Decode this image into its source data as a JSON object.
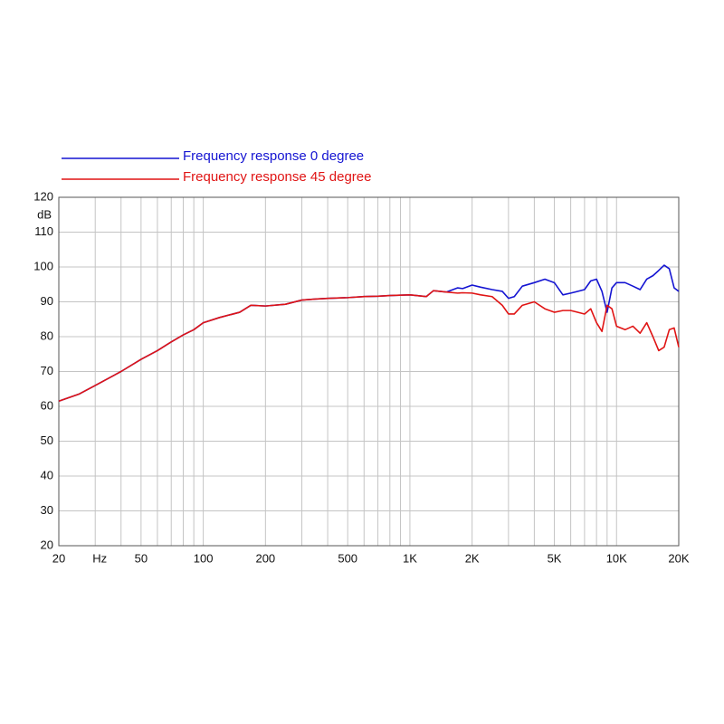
{
  "chart_data": {
    "type": "line",
    "log_x": true,
    "grid": true,
    "ylabel": "dB",
    "x": [
      20,
      25,
      30,
      40,
      50,
      60,
      70,
      80,
      90,
      100,
      120,
      150,
      170,
      200,
      250,
      300,
      350,
      400,
      500,
      600,
      700,
      800,
      1000,
      1200,
      1300,
      1500,
      1700,
      1800,
      2000,
      2200,
      2500,
      2800,
      3000,
      3200,
      3500,
      4000,
      4500,
      5000,
      5500,
      6000,
      7000,
      7500,
      8000,
      8500,
      9000,
      9500,
      10000,
      11000,
      12000,
      13000,
      14000,
      15000,
      16000,
      17000,
      18000,
      19000,
      20000
    ],
    "series": [
      {
        "name": "Frequency response 0 degree",
        "color": "#1414d2",
        "values": [
          61.5,
          63.5,
          66,
          70,
          73.5,
          76,
          78.5,
          80.5,
          82,
          84,
          85.5,
          87,
          89,
          88.8,
          89.3,
          90.5,
          90.8,
          91,
          91.2,
          91.5,
          91.6,
          91.8,
          92,
          91.5,
          93.2,
          92.8,
          94,
          93.8,
          94.8,
          94.2,
          93.5,
          93,
          91,
          91.5,
          94.5,
          95.5,
          96.5,
          95.5,
          92,
          92.5,
          93.5,
          96,
          96.5,
          93,
          87,
          94,
          95.5,
          95.5,
          94.5,
          93.5,
          96.5,
          97.5,
          99,
          100.5,
          99.5,
          94,
          93
        ]
      },
      {
        "name": "Frequency response 45 degree",
        "color": "#e01414",
        "values": [
          61.5,
          63.5,
          66,
          70,
          73.5,
          76,
          78.5,
          80.5,
          82,
          84,
          85.5,
          87,
          89,
          88.8,
          89.3,
          90.5,
          90.8,
          91,
          91.2,
          91.5,
          91.6,
          91.8,
          92,
          91.5,
          93.2,
          92.8,
          92.5,
          92.6,
          92.5,
          92,
          91.5,
          89,
          86.5,
          86.5,
          89,
          90,
          88,
          87,
          87.5,
          87.5,
          86.5,
          88,
          84,
          81.5,
          89,
          88,
          83,
          82,
          83,
          81,
          84,
          80,
          76,
          77,
          82,
          82.5,
          77
        ]
      }
    ],
    "xlim": [
      20,
      20000
    ],
    "xticks": [
      20,
      {
        "value": 30,
        "label": "Hz"
      },
      50,
      100,
      200,
      500,
      {
        "value": 1000,
        "label": "1K"
      },
      {
        "value": 2000,
        "label": "2K"
      },
      {
        "value": 5000,
        "label": "5K"
      },
      {
        "value": 10000,
        "label": "10K"
      },
      {
        "value": 20000,
        "label": "20K"
      }
    ],
    "minor_xticks": [
      40,
      60,
      70,
      80,
      90,
      300,
      400,
      600,
      700,
      800,
      900,
      3000,
      4000,
      6000,
      7000,
      8000,
      9000
    ],
    "ylim": [
      20,
      120
    ],
    "yticks": [
      20,
      30,
      40,
      50,
      60,
      70,
      80,
      90,
      100,
      110,
      120
    ]
  }
}
